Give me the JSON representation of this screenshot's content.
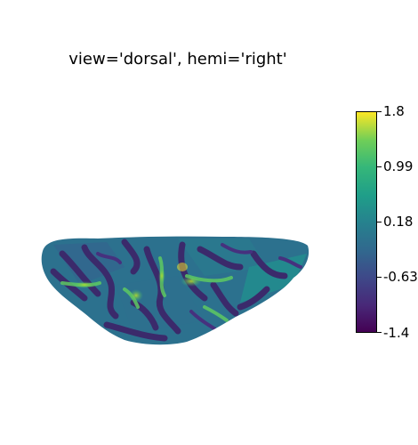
{
  "title": "view='dorsal', hemi='right'",
  "colorbar": {
    "colormap": "viridis",
    "min": -1.4,
    "max": 1.8,
    "ticks": [
      "1.8",
      "0.99",
      "0.18",
      "-0.63",
      "-1.4"
    ],
    "tick_values": [
      1.8,
      0.99,
      0.18,
      -0.63,
      -1.4
    ]
  },
  "colors": {
    "low": "#440154",
    "mid_low": "#3e4989",
    "mid": "#26828e",
    "mid_high": "#35b779",
    "high": "#fde725"
  }
}
